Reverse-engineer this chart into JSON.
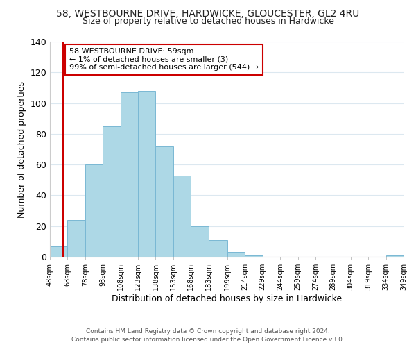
{
  "title": "58, WESTBOURNE DRIVE, HARDWICKE, GLOUCESTER, GL2 4RU",
  "subtitle": "Size of property relative to detached houses in Hardwicke",
  "xlabel": "Distribution of detached houses by size in Hardwicke",
  "ylabel": "Number of detached properties",
  "bar_edges": [
    48,
    63,
    78,
    93,
    108,
    123,
    138,
    153,
    168,
    183,
    199,
    214,
    229,
    244,
    259,
    274,
    289,
    304,
    319,
    334,
    349
  ],
  "bar_heights": [
    7,
    24,
    60,
    85,
    107,
    108,
    72,
    53,
    20,
    11,
    3,
    1,
    0,
    0,
    0,
    0,
    0,
    0,
    0,
    1
  ],
  "bar_color": "#add8e6",
  "bar_edge_color": "#7ab8d4",
  "highlight_x": 59,
  "highlight_color": "#cc0000",
  "ylim": [
    0,
    140
  ],
  "xlim": [
    48,
    349
  ],
  "annotation_title": "58 WESTBOURNE DRIVE: 59sqm",
  "annotation_line1": "← 1% of detached houses are smaller (3)",
  "annotation_line2": "99% of semi-detached houses are larger (544) →",
  "annotation_box_color": "#ffffff",
  "annotation_box_edge_color": "#cc0000",
  "tick_labels": [
    "48sqm",
    "63sqm",
    "78sqm",
    "93sqm",
    "108sqm",
    "123sqm",
    "138sqm",
    "153sqm",
    "168sqm",
    "183sqm",
    "199sqm",
    "214sqm",
    "229sqm",
    "244sqm",
    "259sqm",
    "274sqm",
    "289sqm",
    "304sqm",
    "319sqm",
    "334sqm",
    "349sqm"
  ],
  "footer_line1": "Contains HM Land Registry data © Crown copyright and database right 2024.",
  "footer_line2": "Contains public sector information licensed under the Open Government Licence v3.0.",
  "background_color": "#ffffff",
  "grid_color": "#dce8f0"
}
